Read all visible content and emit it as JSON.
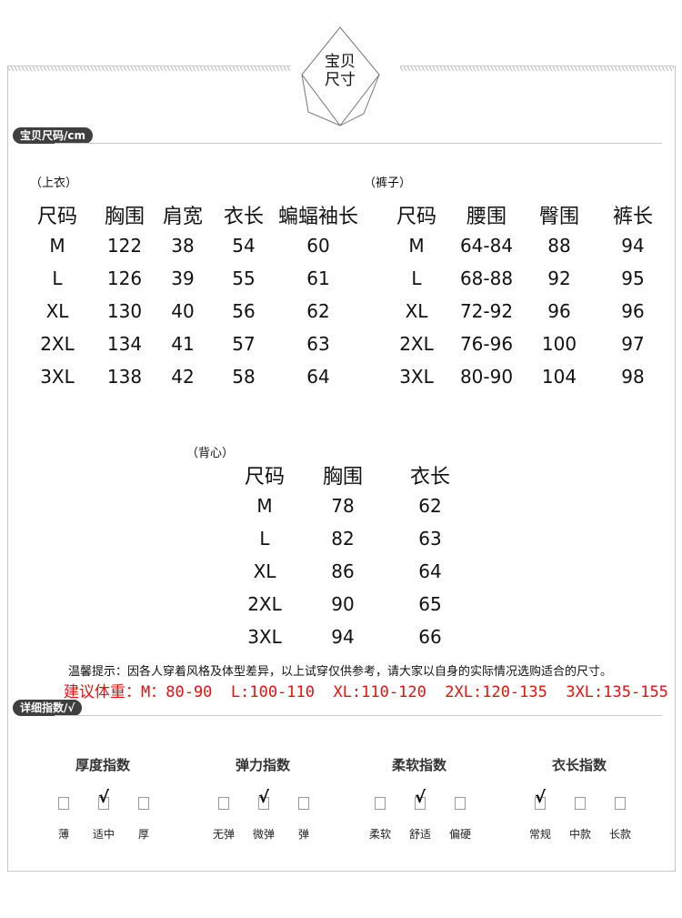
{
  "header": {
    "emblem_line1": "宝贝",
    "emblem_line2": "尺寸"
  },
  "size_section": {
    "badge": "宝贝尺码/cm"
  },
  "tops": {
    "label": "（上衣）",
    "headers": [
      "尺码",
      "胸围",
      "肩宽",
      "衣长",
      "蝙蝠袖长"
    ],
    "rows": [
      [
        "M",
        "122",
        "38",
        "54",
        "60"
      ],
      [
        "L",
        "126",
        "39",
        "55",
        "61"
      ],
      [
        "XL",
        "130",
        "40",
        "56",
        "62"
      ],
      [
        "2XL",
        "134",
        "41",
        "57",
        "63"
      ],
      [
        "3XL",
        "138",
        "42",
        "58",
        "64"
      ]
    ]
  },
  "pants": {
    "label": "（裤子）",
    "headers": [
      "尺码",
      "腰围",
      "臀围",
      "裤长"
    ],
    "rows": [
      [
        "M",
        "64-84",
        "88",
        "94"
      ],
      [
        "L",
        "68-88",
        "92",
        "95"
      ],
      [
        "XL",
        "72-92",
        "96",
        "96"
      ],
      [
        "2XL",
        "76-96",
        "100",
        "97"
      ],
      [
        "3XL",
        "80-90",
        "104",
        "98"
      ]
    ]
  },
  "vest": {
    "label": "（背心）",
    "headers": [
      "尺码",
      "胸围",
      "衣长"
    ],
    "rows": [
      [
        "M",
        "78",
        "62"
      ],
      [
        "L",
        "82",
        "63"
      ],
      [
        "XL",
        "86",
        "64"
      ],
      [
        "2XL",
        "90",
        "65"
      ],
      [
        "3XL",
        "94",
        "66"
      ]
    ]
  },
  "tip": "温馨提示：因各人穿着风格及体型差异，以上试穿仅供参考，请大家以自身的实际情况选购适合的尺寸。",
  "weight": "建议体重：M：80-90  L:100-110  XL:110-120  2XL:120-135  3XL:135-155",
  "weight_color": "#e81010",
  "index_section": {
    "badge": "详细指数/√",
    "groups": [
      {
        "title": "厚度指数",
        "options": [
          "薄",
          "适中",
          "厚"
        ],
        "checked": 1
      },
      {
        "title": "弹力指数",
        "options": [
          "无弹",
          "微弹",
          "弹"
        ],
        "checked": 1
      },
      {
        "title": "柔软指数",
        "options": [
          "柔软",
          "舒适",
          "偏硬"
        ],
        "checked": 1
      },
      {
        "title": "衣长指数",
        "options": [
          "常规",
          "中款",
          "长款"
        ],
        "checked": 0
      }
    ],
    "check_mark": "√"
  }
}
